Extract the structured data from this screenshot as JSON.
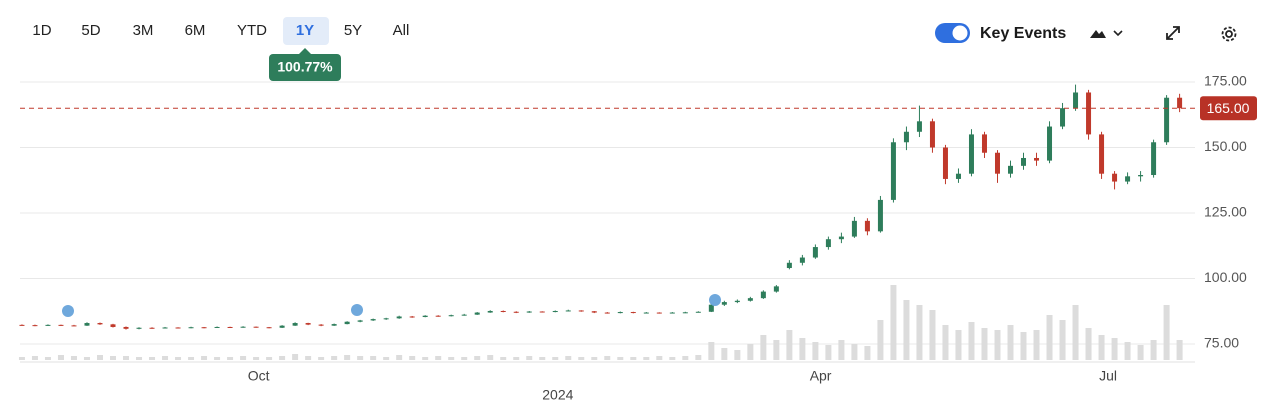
{
  "toolbar": {
    "ranges": [
      "1D",
      "5D",
      "3M",
      "6M",
      "YTD",
      "1Y",
      "5Y",
      "All"
    ],
    "selected": 5,
    "range_return": "100.77%",
    "key_events_label": "Key Events"
  },
  "chart_data": {
    "type": "candlestick",
    "x": [
      0,
      1,
      2,
      3,
      4,
      5,
      6,
      7,
      8,
      9,
      10,
      11,
      12,
      13,
      14,
      15,
      16,
      17,
      18,
      19,
      20,
      21,
      22,
      23,
      24,
      25,
      26,
      27,
      28,
      29,
      30,
      31,
      32,
      33,
      34,
      35,
      36,
      37,
      38,
      39,
      40,
      41,
      42,
      43,
      44,
      45,
      46,
      47,
      48,
      49,
      50,
      51,
      52,
      53,
      54,
      55,
      56,
      57,
      58,
      59,
      60,
      61,
      62,
      63,
      64,
      65,
      66,
      67,
      68,
      69,
      70,
      71,
      72,
      73,
      74,
      75,
      76,
      77,
      78,
      79,
      80,
      81,
      82,
      83,
      84,
      85,
      86,
      87,
      88,
      89
    ],
    "candles": [
      [
        82.3,
        82.5,
        82.0,
        82.2
      ],
      [
        82.2,
        82.4,
        81.8,
        82.0
      ],
      [
        82.0,
        82.5,
        81.9,
        82.3
      ],
      [
        82.3,
        82.4,
        81.9,
        82.1
      ],
      [
        82.1,
        82.3,
        81.8,
        82.0
      ],
      [
        82.0,
        83.3,
        81.9,
        83.0
      ],
      [
        83.0,
        83.2,
        82.3,
        82.5
      ],
      [
        82.5,
        82.7,
        81.3,
        81.5
      ],
      [
        81.5,
        81.7,
        80.5,
        80.8
      ],
      [
        80.8,
        81.4,
        80.6,
        81.2
      ],
      [
        81.2,
        81.4,
        80.8,
        81.0
      ],
      [
        81.0,
        81.5,
        80.9,
        81.3
      ],
      [
        81.3,
        81.4,
        80.9,
        81.1
      ],
      [
        81.1,
        81.6,
        81.0,
        81.4
      ],
      [
        81.4,
        81.5,
        81.0,
        81.2
      ],
      [
        81.2,
        81.7,
        81.1,
        81.5
      ],
      [
        81.5,
        81.6,
        81.1,
        81.3
      ],
      [
        81.3,
        81.8,
        81.2,
        81.6
      ],
      [
        81.6,
        81.7,
        81.2,
        81.4
      ],
      [
        81.4,
        81.5,
        81.0,
        81.2
      ],
      [
        81.2,
        82.2,
        81.1,
        82.0
      ],
      [
        82.0,
        83.3,
        81.9,
        83.0
      ],
      [
        83.0,
        83.1,
        82.2,
        82.4
      ],
      [
        82.4,
        82.6,
        81.8,
        82.0
      ],
      [
        82.0,
        82.8,
        81.9,
        82.6
      ],
      [
        82.6,
        83.7,
        82.5,
        83.5
      ],
      [
        83.5,
        84.2,
        83.3,
        84.0
      ],
      [
        84.0,
        84.7,
        83.8,
        84.5
      ],
      [
        84.5,
        85.0,
        84.2,
        84.8
      ],
      [
        84.8,
        85.8,
        84.6,
        85.5
      ],
      [
        85.5,
        85.7,
        85.0,
        85.3
      ],
      [
        85.3,
        86.0,
        85.2,
        85.8
      ],
      [
        85.8,
        86.0,
        85.4,
        85.6
      ],
      [
        85.6,
        86.2,
        85.5,
        86.0
      ],
      [
        86.0,
        86.5,
        85.8,
        86.2
      ],
      [
        86.2,
        87.2,
        86.1,
        87.0
      ],
      [
        87.0,
        87.9,
        86.9,
        87.6
      ],
      [
        87.6,
        87.8,
        87.1,
        87.3
      ],
      [
        87.3,
        87.5,
        86.8,
        87.0
      ],
      [
        87.0,
        87.6,
        86.9,
        87.4
      ],
      [
        87.4,
        87.5,
        87.0,
        87.2
      ],
      [
        87.2,
        87.8,
        87.1,
        87.6
      ],
      [
        87.6,
        88.1,
        87.4,
        87.8
      ],
      [
        87.8,
        87.9,
        87.3,
        87.5
      ],
      [
        87.5,
        87.6,
        86.8,
        87.0
      ],
      [
        87.0,
        87.2,
        86.6,
        86.8
      ],
      [
        86.8,
        87.4,
        86.7,
        87.2
      ],
      [
        87.2,
        87.3,
        86.7,
        86.9
      ],
      [
        86.9,
        87.2,
        86.8,
        87.0
      ],
      [
        87.0,
        87.1,
        86.6,
        86.8
      ],
      [
        86.8,
        87.2,
        86.7,
        87.0
      ],
      [
        87.0,
        87.3,
        86.8,
        87.1
      ],
      [
        87.1,
        87.5,
        87.0,
        87.3
      ],
      [
        87.3,
        90.5,
        87.2,
        90.0
      ],
      [
        90.0,
        91.5,
        89.5,
        91.0
      ],
      [
        91.0,
        92.0,
        90.6,
        91.5
      ],
      [
        91.5,
        93.0,
        91.2,
        92.5
      ],
      [
        92.5,
        95.5,
        92.2,
        95.0
      ],
      [
        95.0,
        97.5,
        94.6,
        97.0
      ],
      [
        104.0,
        107.0,
        103.5,
        106.0
      ],
      [
        106.0,
        109.0,
        105.0,
        108.0
      ],
      [
        108.0,
        113.0,
        107.5,
        112.0
      ],
      [
        112.0,
        116.0,
        111.0,
        115.0
      ],
      [
        115.0,
        117.5,
        113.5,
        116.0
      ],
      [
        116.0,
        123.5,
        115.5,
        122.0
      ],
      [
        122.0,
        123.0,
        116.5,
        118.0
      ],
      [
        118.0,
        131.5,
        117.5,
        130.0
      ],
      [
        130.0,
        153.5,
        129.0,
        152.0
      ],
      [
        152.0,
        158.0,
        149.0,
        156.0
      ],
      [
        156.0,
        166.0,
        154.0,
        160.0
      ],
      [
        160.0,
        161.0,
        148.0,
        150.0
      ],
      [
        150.0,
        151.0,
        136.0,
        138.0
      ],
      [
        138.0,
        142.0,
        136.5,
        140.0
      ],
      [
        140.0,
        157.0,
        139.0,
        155.0
      ],
      [
        155.0,
        156.0,
        146.0,
        148.0
      ],
      [
        148.0,
        149.0,
        136.5,
        140.0
      ],
      [
        140.0,
        145.0,
        138.5,
        143.0
      ],
      [
        143.0,
        148.0,
        141.5,
        146.0
      ],
      [
        146.0,
        148.0,
        143.0,
        145.0
      ],
      [
        145.0,
        160.0,
        144.0,
        158.0
      ],
      [
        158.0,
        167.0,
        157.0,
        165.0
      ],
      [
        165.0,
        174.0,
        164.0,
        171.0
      ],
      [
        171.0,
        172.0,
        153.0,
        155.0
      ],
      [
        155.0,
        156.0,
        138.0,
        140.0
      ],
      [
        140.0,
        141.0,
        134.0,
        137.0
      ],
      [
        137.0,
        140.5,
        136.0,
        139.0
      ],
      [
        139.0,
        141.0,
        137.0,
        139.5
      ],
      [
        139.5,
        153.0,
        138.5,
        152.0
      ],
      [
        152.0,
        170.0,
        151.0,
        169.0
      ],
      [
        169.0,
        170.5,
        163.5,
        165.0
      ]
    ],
    "volume": [
      3,
      4,
      3,
      5,
      4,
      3,
      5,
      4,
      4,
      3,
      3,
      4,
      3,
      3,
      4,
      3,
      3,
      4,
      3,
      3,
      4,
      6,
      4,
      3,
      4,
      5,
      4,
      4,
      3,
      5,
      4,
      3,
      4,
      3,
      3,
      4,
      5,
      3,
      3,
      4,
      3,
      3,
      4,
      3,
      3,
      4,
      3,
      3,
      3,
      4,
      3,
      4,
      5,
      18,
      12,
      10,
      16,
      25,
      20,
      30,
      22,
      18,
      15,
      20,
      16,
      14,
      40,
      75,
      60,
      55,
      50,
      35,
      30,
      38,
      32,
      30,
      35,
      28,
      30,
      45,
      40,
      55,
      32,
      25,
      22,
      18,
      15,
      20,
      55,
      20
    ],
    "up_color": "#2e7d5b",
    "down_color": "#c0392b",
    "volume_color": "#dcdcdc",
    "xlim": [
      -0.15,
      89.8
    ],
    "xticks": [
      {
        "value": 18.2,
        "label": "Oct"
      },
      {
        "value": 61.4,
        "label": "Apr"
      },
      {
        "value": 83.5,
        "label": "Jul"
      }
    ],
    "xticks_year": [
      {
        "value": 41.2,
        "label": "2024"
      }
    ],
    "ylim": [
      75,
      175
    ],
    "yticks": [
      {
        "value": 75,
        "label": "75.00"
      },
      {
        "value": 100,
        "label": "100.00"
      },
      {
        "value": 125,
        "label": "125.00"
      },
      {
        "value": 150,
        "label": "150.00"
      },
      {
        "value": 175,
        "label": "175.00"
      }
    ],
    "last_price": {
      "value": 165,
      "label": "165.00"
    },
    "grid": true
  }
}
